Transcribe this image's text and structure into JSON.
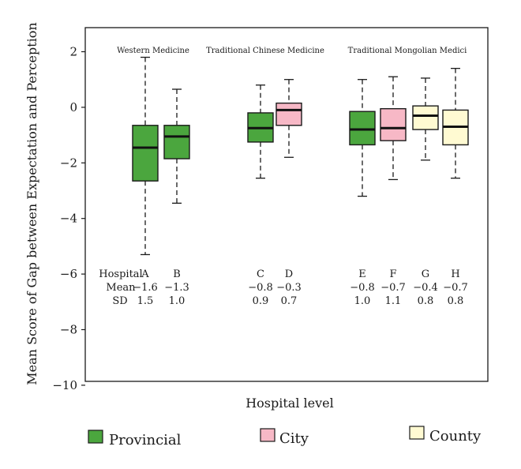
{
  "chart_data": {
    "type": "box",
    "title": "",
    "xlabel": "Hospital level",
    "ylabel": "Mean Score of Gap between Expectation and Perception",
    "ylim": [
      -10,
      3
    ],
    "yticks": [
      2,
      0,
      -2,
      -4,
      -6,
      -8,
      -10
    ],
    "ytick_labels": [
      "2",
      "0",
      "−2",
      "−4",
      "−6",
      "−8",
      "−10"
    ],
    "groups": [
      {
        "title": "Western Medicine",
        "hospitals": [
          "A",
          "B"
        ]
      },
      {
        "title": "Traditional Chinese Medicine",
        "hospitals": [
          "C",
          "D"
        ]
      },
      {
        "title": "Traditional Mongolian Medici",
        "hospitals": [
          "E",
          "F",
          "G",
          "H"
        ]
      }
    ],
    "boxes": [
      {
        "hospital": "A",
        "level": "Provincial",
        "min": -5.3,
        "q1": -2.65,
        "median": -1.45,
        "q3": -0.65,
        "max": 1.8
      },
      {
        "hospital": "B",
        "level": "Provincial",
        "min": -3.45,
        "q1": -1.85,
        "median": -1.05,
        "q3": -0.65,
        "max": 0.65
      },
      {
        "hospital": "C",
        "level": "Provincial",
        "min": -2.55,
        "q1": -1.25,
        "median": -0.75,
        "q3": -0.2,
        "max": 0.8
      },
      {
        "hospital": "D",
        "level": "City",
        "min": -1.8,
        "q1": -0.65,
        "median": -0.1,
        "q3": 0.15,
        "max": 1.0
      },
      {
        "hospital": "E",
        "level": "Provincial",
        "min": -3.2,
        "q1": -1.35,
        "median": -0.8,
        "q3": -0.15,
        "max": 1.0
      },
      {
        "hospital": "F",
        "level": "City",
        "min": -2.6,
        "q1": -1.2,
        "median": -0.75,
        "q3": -0.05,
        "max": 1.1
      },
      {
        "hospital": "G",
        "level": "County",
        "min": -1.9,
        "q1": -0.8,
        "median": -0.3,
        "q3": 0.05,
        "max": 1.05
      },
      {
        "hospital": "H",
        "level": "County",
        "min": -2.55,
        "q1": -1.35,
        "median": -0.7,
        "q3": -0.1,
        "max": 1.4
      }
    ],
    "stats_table": {
      "row_labels": [
        "Hospital",
        "Mean",
        "SD"
      ],
      "columns": [
        {
          "hospital": "A",
          "mean": "−1.6",
          "sd": "1.5"
        },
        {
          "hospital": "B",
          "mean": "−1.3",
          "sd": "1.0"
        },
        {
          "hospital": "C",
          "mean": "−0.8",
          "sd": "0.9"
        },
        {
          "hospital": "D",
          "mean": "−0.3",
          "sd": "0.7"
        },
        {
          "hospital": "E",
          "mean": "−0.8",
          "sd": "1.0"
        },
        {
          "hospital": "F",
          "mean": "−0.7",
          "sd": "1.1"
        },
        {
          "hospital": "G",
          "mean": "−0.4",
          "sd": "0.8"
        },
        {
          "hospital": "H",
          "mean": "−0.7",
          "sd": "0.8"
        }
      ]
    },
    "legend": [
      {
        "label": "Provincial",
        "color": "#4ba63e"
      },
      {
        "label": "City",
        "color": "#f7b8c6"
      },
      {
        "label": "County",
        "color": "#fffad2"
      }
    ],
    "legend_position": "bottom",
    "grid": false
  }
}
